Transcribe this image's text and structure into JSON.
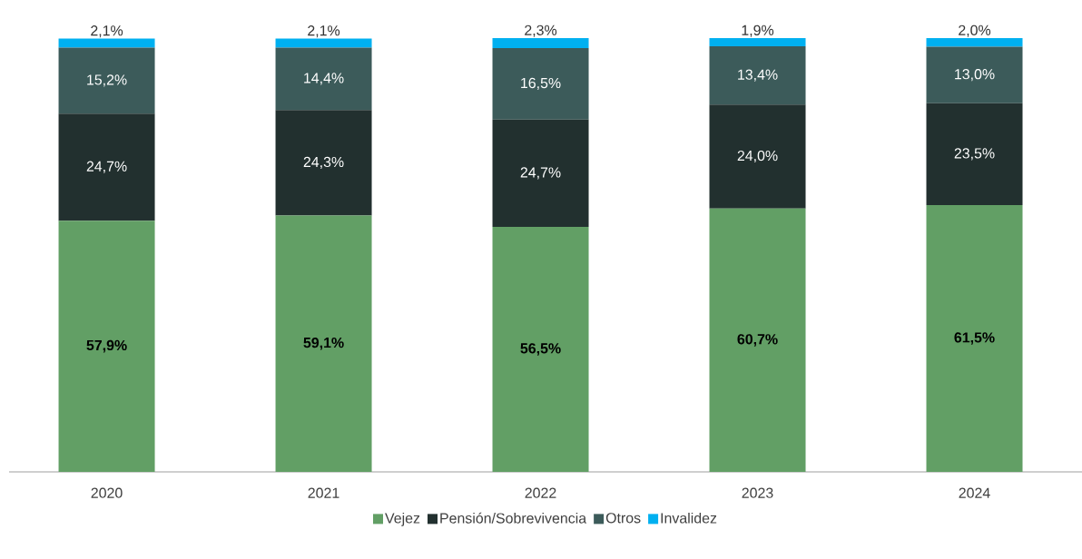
{
  "chart_data": {
    "type": "bar",
    "stacked": true,
    "categories": [
      "2020",
      "2021",
      "2022",
      "2023",
      "2024"
    ],
    "ylim": [
      0,
      100
    ],
    "tick_labels": "x",
    "grid": false,
    "legend": "bottom",
    "series": [
      {
        "name": "Vejez",
        "color": "#629f65",
        "values": [
          57.9,
          59.1,
          56.5,
          60.7,
          61.5
        ],
        "value_labels": [
          "57,9%",
          "59,1%",
          "56,5%",
          "60,7%",
          "61,5%"
        ]
      },
      {
        "name": "Pensión/Sobrevivencia",
        "color": "#22302f",
        "values": [
          24.7,
          24.3,
          24.7,
          24.0,
          23.5
        ],
        "value_labels": [
          "24,7%",
          "24,3%",
          "24,7%",
          "24,0%",
          "23,5%"
        ]
      },
      {
        "name": "Otros",
        "color": "#3c5b5a",
        "values": [
          15.2,
          14.4,
          16.5,
          13.4,
          13.0
        ],
        "value_labels": [
          "15,2%",
          "14,4%",
          "16,5%",
          "13,4%",
          "13,0%"
        ]
      },
      {
        "name": "Invalidez",
        "color": "#00b0f0",
        "values": [
          2.1,
          2.1,
          2.3,
          1.9,
          2.0
        ],
        "value_labels": [
          "2,1%",
          "2,1%",
          "2,3%",
          "1,9%",
          "2,0%"
        ]
      }
    ]
  }
}
